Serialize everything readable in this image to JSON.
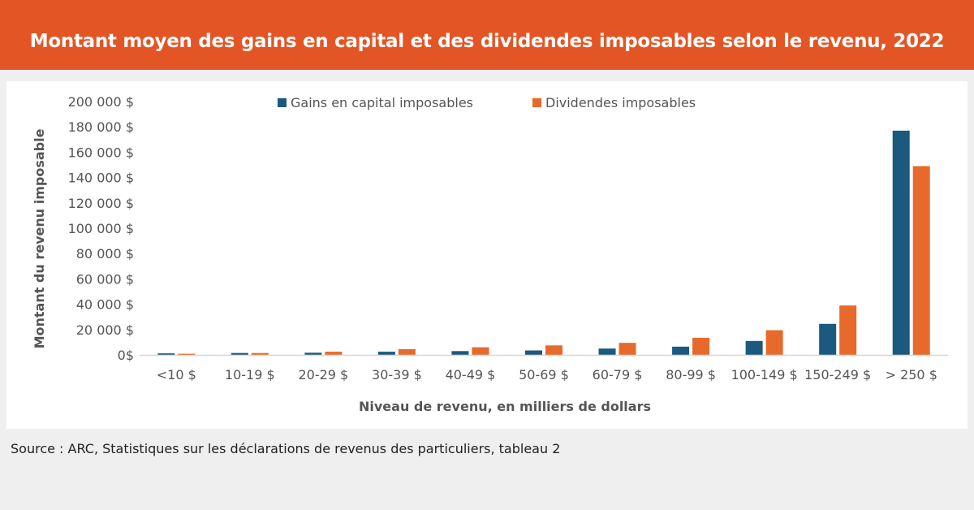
{
  "header": {
    "title": "Montant moyen des gains en capital et des dividendes imposables selon le revenu, 2022"
  },
  "source": "Source : ARC, Statistiques sur les déclarations de revenus des particuliers, tableau 2",
  "colors": {
    "header_bg": "#e35525",
    "series_capital_gains": "#1b5a7e",
    "series_dividends": "#e8692c"
  },
  "chart_data": {
    "type": "bar",
    "title": "",
    "xlabel": "Niveau de revenu, en milliers de dollars",
    "ylabel": "Montant du revenu imposable",
    "ylim": [
      0,
      200000
    ],
    "y_ticks": [
      {
        "value": 0,
        "label": "0$"
      },
      {
        "value": 20000,
        "label": "20 000 $"
      },
      {
        "value": 40000,
        "label": "40 000 $"
      },
      {
        "value": 60000,
        "label": "60 000 $"
      },
      {
        "value": 80000,
        "label": "80 000 $"
      },
      {
        "value": 100000,
        "label": "100 000 $"
      },
      {
        "value": 120000,
        "label": "120 000 $"
      },
      {
        "value": 140000,
        "label": "140 000 $"
      },
      {
        "value": 160000,
        "label": "160 000 $"
      },
      {
        "value": 180000,
        "label": "180 000 $"
      },
      {
        "value": 200000,
        "label": "200 000 $"
      }
    ],
    "categories": [
      "<10 $",
      "10-19 $",
      "20-29 $",
      "30-39 $",
      "40-49 $",
      "50-69 $",
      "60-79 $",
      "80-99 $",
      "100-149 $",
      "150-249 $",
      "> 250 $"
    ],
    "series": [
      {
        "name": "Gains en capital imposables",
        "color": "#1b5a7e",
        "values": [
          1200,
          1500,
          1700,
          2500,
          3000,
          3500,
          5000,
          6500,
          11000,
          24500,
          177000
        ]
      },
      {
        "name": "Dividendes imposables",
        "color": "#e8692c",
        "values": [
          900,
          1500,
          2500,
          4500,
          6000,
          7500,
          9500,
          13500,
          19500,
          39000,
          149000
        ]
      }
    ],
    "legend_position": "top",
    "grid": false
  }
}
